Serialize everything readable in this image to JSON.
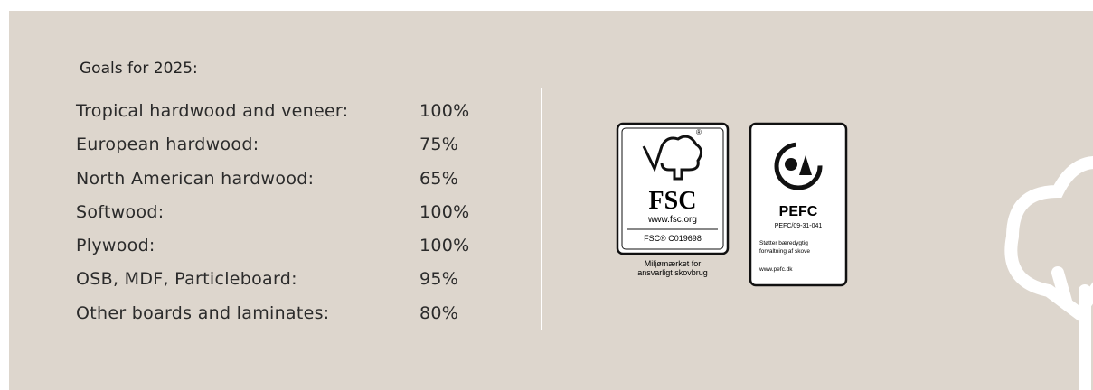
{
  "header": {
    "title": "Goals for 2025:"
  },
  "table": {
    "rows": [
      [
        "Tropical hardwood and veneer:",
        "100%"
      ],
      [
        "European hardwood:",
        "75%"
      ],
      [
        "North American hardwood:",
        "65%"
      ],
      [
        "Softwood:",
        "100%"
      ],
      [
        "Plywood:",
        "100%"
      ],
      [
        "OSB, MDF, Particleboard:",
        "95%"
      ],
      [
        "Other boards and laminates:",
        "80%"
      ]
    ]
  },
  "logos": {
    "fsc": {
      "name": "FSC",
      "url": "www.fsc.org",
      "code": "FSC® C019698",
      "caption": [
        "Miljømærket for",
        "ansvarligt skovbrug"
      ]
    },
    "pefc": {
      "name": "PEFC",
      "code": "PEFC/09-31-041",
      "text": [
        "Støtter bæredygtig",
        "forvaltning af skove"
      ],
      "url": "www.pefc.dk"
    }
  }
}
